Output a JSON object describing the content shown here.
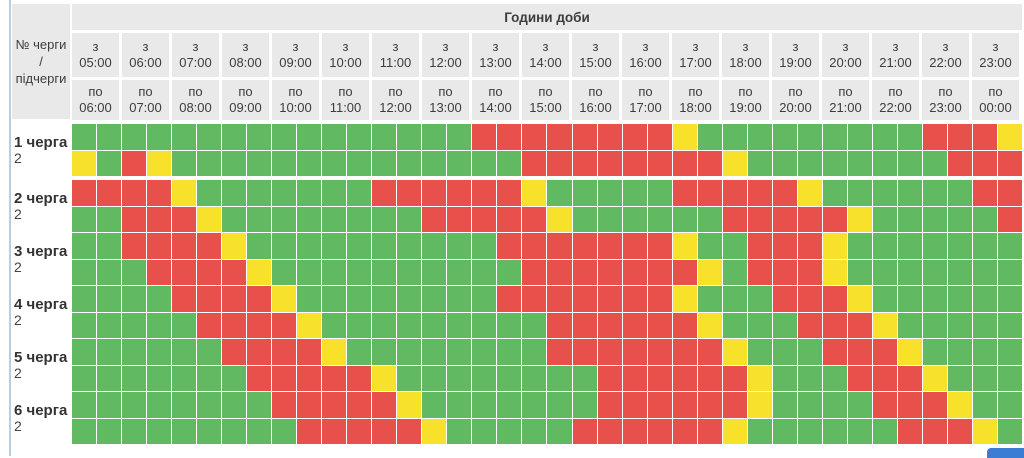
{
  "colors": {
    "G": "#61b961",
    "R": "#e8504b",
    "Y": "#f8e12b",
    "header_bg": "#e9e9e9",
    "header_text": "#3d3d3d",
    "left_line": "#b6cfe6",
    "button_blue": "#3b7cd5"
  },
  "header": {
    "title": "Години доби",
    "corner_lines": [
      "№ черги",
      "/",
      "підчерги"
    ],
    "from_prefix": "з",
    "to_prefix": "по",
    "columns": [
      {
        "from": "05:00",
        "to": "06:00"
      },
      {
        "from": "06:00",
        "to": "07:00"
      },
      {
        "from": "07:00",
        "to": "08:00"
      },
      {
        "from": "08:00",
        "to": "09:00"
      },
      {
        "from": "09:00",
        "to": "10:00"
      },
      {
        "from": "10:00",
        "to": "11:00"
      },
      {
        "from": "11:00",
        "to": "12:00"
      },
      {
        "from": "12:00",
        "to": "13:00"
      },
      {
        "from": "13:00",
        "to": "14:00"
      },
      {
        "from": "14:00",
        "to": "15:00"
      },
      {
        "from": "15:00",
        "to": "16:00"
      },
      {
        "from": "16:00",
        "to": "17:00"
      },
      {
        "from": "17:00",
        "to": "18:00"
      },
      {
        "from": "18:00",
        "to": "19:00"
      },
      {
        "from": "19:00",
        "to": "20:00"
      },
      {
        "from": "20:00",
        "to": "21:00"
      },
      {
        "from": "21:00",
        "to": "22:00"
      },
      {
        "from": "22:00",
        "to": "23:00"
      },
      {
        "from": "23:00",
        "to": "00:00"
      }
    ]
  },
  "cell_states": {
    "G": "power-on",
    "R": "power-off",
    "Y": "possible-off"
  },
  "groups": [
    {
      "label": "1 черга",
      "sub_label": "2",
      "rows": [
        "GGGGGGGGGGGGGGGGRRRRRRRRYGGGGGGGGGRRRY",
        "YGRYGGGGGGGGGGGGGGRRRRRRRRYGGGGGGGGRRR"
      ]
    },
    {
      "label": "2 черга",
      "sub_label": "2",
      "rows": [
        "RRRRYGGGGGGGRRRRRRYGGGGGRRRRRYGGGGGGRR",
        "GGRRRYGGGGGGGGRRRRRYGGGGGGRRRRRYGGGGGR"
      ]
    },
    {
      "label": "3 черга",
      "sub_label": "2",
      "rows": [
        "GGRRRRYGGGGGGGGGGRRRRRRRYGGRRRYGGGGGGG",
        "GGGRRRRYGGGGGGGGGGRRRRRRRYGRRRYGGGGGGG"
      ]
    },
    {
      "label": "4 черга",
      "sub_label": "2",
      "rows": [
        "GGGGRRRRYGGGGGGGGRRRRRRRYGGGRRRYGGGGGG",
        "GGGGGRRRRYGGGGGGGGGRRRRRRYGGGRRRYGGGGG"
      ]
    },
    {
      "label": "5 черга",
      "sub_label": "2",
      "rows": [
        "GGGGGGRRRRYGGGGGGGGRRRRRRRYGGGRRRYGGGG",
        "GGGGGGGRRRRRYGGGGGGGGRRRRRRYGGGRRRYGGG"
      ]
    },
    {
      "label": "6 черга",
      "sub_label": "2",
      "rows": [
        "GGGGGGGGRRRRRYGGGGGGGRRRRRRYGGGGRRRYGG",
        "GGGGGGGGGRRRRRYGGGGGRRRRRRYGGGGGGRRRYG"
      ]
    }
  ]
}
